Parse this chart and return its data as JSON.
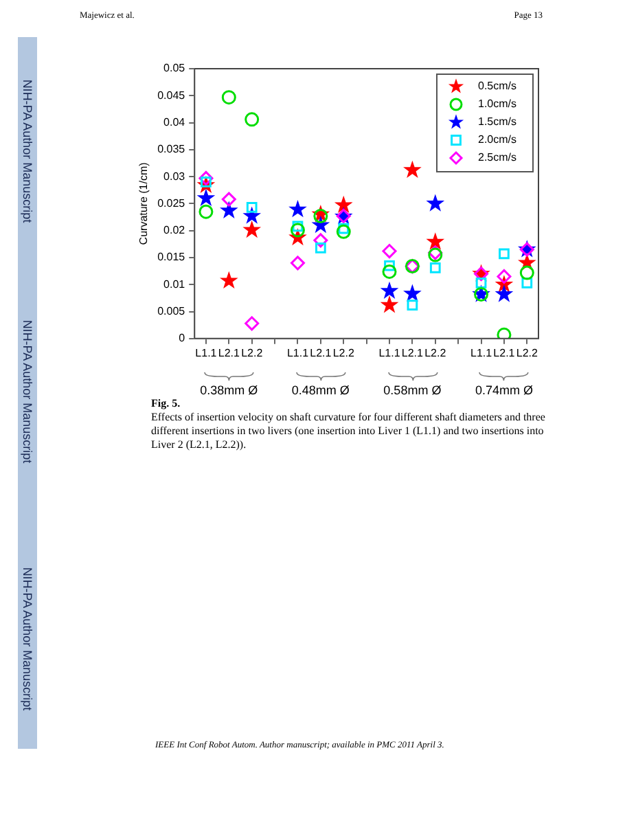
{
  "chart_data": {
    "type": "scatter",
    "ylabel": "Curvature (1/cm)",
    "categories": [
      "L1.1",
      "L2.1",
      "L2.2",
      null,
      "L1.1",
      "L2.1",
      "L2.2",
      null,
      "L1.1",
      "L2.1",
      "L2.2",
      null,
      "L1.1",
      "L2.1",
      "L2.2"
    ],
    "series": [
      {
        "name": "0.5cm/s",
        "color": "#ff0000",
        "marker": "star",
        "values": [
          0.0284,
          0.0107,
          0.0201,
          null,
          0.0187,
          0.023,
          0.0247,
          null,
          0.0062,
          0.0312,
          0.0179,
          null,
          0.012,
          0.01,
          0.014
        ]
      },
      {
        "name": "1.0cm/s",
        "color": "#00dd00",
        "marker": "circle",
        "values": [
          0.0235,
          0.0447,
          0.0406,
          null,
          0.0201,
          0.0227,
          0.0198,
          null,
          0.0124,
          0.0134,
          0.0155,
          null,
          0.0082,
          0.0007,
          0.0122
        ]
      },
      {
        "name": "1.5cm/s",
        "color": "#0000ff",
        "marker": "star",
        "values": [
          0.026,
          0.0237,
          0.0227,
          null,
          0.0239,
          0.021,
          0.0226,
          null,
          0.0088,
          0.0083,
          0.025,
          null,
          0.0082,
          0.0082,
          0.0165
        ]
      },
      {
        "name": "2.0cm/s",
        "color": "#00e5ff",
        "marker": "square",
        "values": [
          0.029,
          null,
          0.0243,
          null,
          0.0208,
          0.0168,
          0.0204,
          null,
          0.0135,
          0.0062,
          0.0131,
          null,
          0.0103,
          0.0157,
          0.0103
        ]
      },
      {
        "name": "2.5cm/s",
        "color": "#ff00ff",
        "marker": "diamond",
        "values": [
          0.0297,
          0.0258,
          0.0028,
          null,
          0.014,
          0.0182,
          0.0227,
          null,
          0.0162,
          0.0134,
          0.0159,
          null,
          0.012,
          0.0115,
          0.0165
        ]
      }
    ],
    "ylim": [
      0,
      0.05
    ],
    "yticks": [
      0,
      0.005,
      0.01,
      0.015,
      0.02,
      0.025,
      0.03,
      0.035,
      0.04,
      0.045,
      0.05
    ],
    "grid": false,
    "legend": "top right",
    "annotations": [
      "Majewicz et al.",
      "Page 13",
      "NIH-PA Author Manuscript",
      "NIH-PA Author Manuscript",
      "NIH-PA Author Manuscript",
      "Fig. 5.",
      "Effects of insertion velocity on shaft curvature for four different shaft diameters and three different insertions in two livers (one insertion into Liver 1 (L1.1) and two insertions into Liver 2 (L2.1, L2.2)).",
      "IEEE Int Conf Robot Autom. Author manuscript; available in PMC 2011 April 3.",
      "0.38mm Ø",
      "0.48mm Ø",
      "0.58mm Ø",
      "0.74mm Ø"
    ]
  }
}
